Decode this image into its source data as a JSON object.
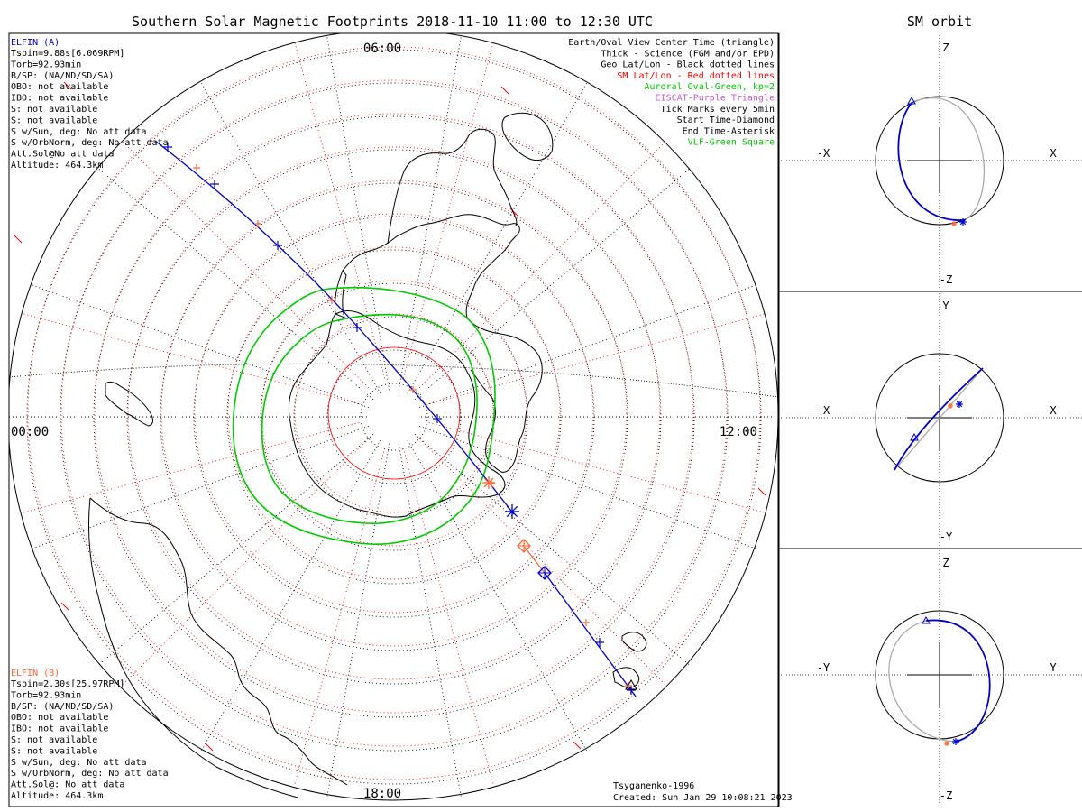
{
  "header": {
    "title": "Southern Solar Magnetic Footprints 2018-11-10 11:00 to 12:30 UTC",
    "right_title": "SM orbit"
  },
  "info_a": {
    "name": "ELFIN (A)",
    "color": "#0000cc",
    "lines": [
      "Tspin=9.88s[6.069RPM]",
      "Torb=92.93min",
      "B/SP: (NA/ND/SD/SA)",
      "OBO: not available",
      "IBO: not available",
      "S: not available",
      "S: not available",
      "S w/Sun, deg: No att data",
      "S w/OrbNorm, deg: No att data",
      "Att.Sol@No att data",
      "Altitude: 464.3km"
    ]
  },
  "info_b": {
    "name": "ELFIN (B)",
    "color": "#ff6633",
    "lines": [
      "Tspin=2.30s[25.97RPM]",
      "Torb=92.93min",
      "B/SP: (NA/ND/SD/SA)",
      "OBO: not available",
      "IBO: not available",
      "S: not available",
      "S: not available",
      "S w/Sun, deg: No att data",
      "S w/OrbNorm, deg: No att data",
      "Att.Sol@: No att data",
      "Altitude: 464.3km"
    ]
  },
  "legend": [
    {
      "text": "Earth/Oval View Center Time (triangle)",
      "color": "#000000"
    },
    {
      "text": "Thick - Science (FGM and/or EPD)",
      "color": "#000000"
    },
    {
      "text": "Geo Lat/Lon - Black dotted lines",
      "color": "#000000"
    },
    {
      "text": "SM Lat/Lon - Red dotted lines",
      "color": "#ff0000"
    },
    {
      "text": "Auroral Oval-Green, kp=2",
      "color": "#00cc00"
    },
    {
      "text": "EISCAT-Purple Triangle",
      "color": "#cc55cc"
    },
    {
      "text": "Tick Marks every 5min",
      "color": "#000000"
    },
    {
      "text": "Start Time-Diamond",
      "color": "#000000"
    },
    {
      "text": "End Time-Asterisk",
      "color": "#000000"
    },
    {
      "text": "VLF-Green Square",
      "color": "#00cc00"
    }
  ],
  "hours": {
    "top": "06:00",
    "left": "00:00",
    "right": "12:00",
    "bottom": "18:00"
  },
  "footer": {
    "model": "Tsyganenko-1996",
    "created": "Created: Sun Jan 29 10:08:21 2023"
  },
  "panels": [
    {
      "top": "Z",
      "bottom": "-Z",
      "left": "-X",
      "right": "X"
    },
    {
      "top": "Y",
      "bottom": "-Y",
      "left": "-X",
      "right": "X"
    },
    {
      "top": "Z",
      "bottom": "-Z",
      "left": "-Y",
      "right": "Y"
    }
  ],
  "colors": {
    "elfin_a": "#0000cc",
    "elfin_b": "#ff6633",
    "oval": "#00cc00",
    "sm_grid": "#ff0000",
    "geo_grid": "#000000",
    "orbit_back": "#aaaaaa"
  }
}
